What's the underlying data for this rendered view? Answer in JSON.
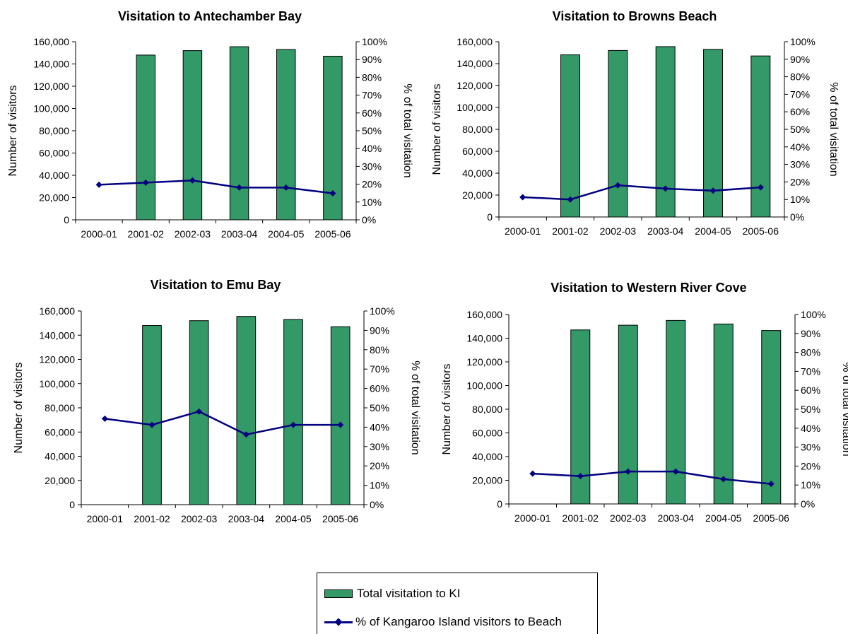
{
  "chart_data": [
    {
      "type": "bar+line",
      "title": "Visitation to Antechamber Bay",
      "ylabel": "Number of visitors",
      "y2label": "% of total visitation",
      "ylim": [
        0,
        160000
      ],
      "y2lim": [
        0,
        100
      ],
      "categories": [
        "2000-01",
        "2001-02",
        "2002-03",
        "2003-04",
        "2004-05",
        "2005-06"
      ],
      "y_ticks": [
        "0",
        "20,000",
        "40,000",
        "60,000",
        "80,000",
        "100,000",
        "120,000",
        "140,000",
        "160,000"
      ],
      "y2_ticks": [
        "0%",
        "10%",
        "20%",
        "30%",
        "40%",
        "50%",
        "60%",
        "70%",
        "80%",
        "90%",
        "100%"
      ],
      "series": [
        {
          "name": "Total visitation to KI",
          "type": "bar",
          "axis": "left",
          "values": [
            null,
            148000,
            152000,
            155500,
            153000,
            147000
          ]
        },
        {
          "name": "% of Kangaroo Island visitors to Beach",
          "type": "line",
          "axis": "right",
          "values": [
            19.7,
            20.9,
            22.1,
            18.1,
            18.1,
            14.9
          ]
        }
      ]
    },
    {
      "type": "bar+line",
      "title": "Visitation to Browns Beach",
      "ylabel": "Number of visitors",
      "y2label": "% of total visitation",
      "ylim": [
        0,
        160000
      ],
      "y2lim": [
        0,
        100
      ],
      "categories": [
        "2000-01",
        "2001-02",
        "2002-03",
        "2003-04",
        "2004-05",
        "2005-06"
      ],
      "y_ticks": [
        "0",
        "20,000",
        "40,000",
        "60,000",
        "80,000",
        "100,000",
        "120,000",
        "140,000",
        "160,000"
      ],
      "y2_ticks": [
        "0%",
        "10%",
        "20%",
        "30%",
        "40%",
        "50%",
        "60%",
        "70%",
        "80%",
        "90%",
        "100%"
      ],
      "series": [
        {
          "name": "Total visitation to KI",
          "type": "bar",
          "axis": "left",
          "values": [
            null,
            148000,
            152000,
            155500,
            153000,
            147000
          ]
        },
        {
          "name": "% of Kangaroo Island visitors to Beach",
          "type": "line",
          "axis": "right",
          "values": [
            11.3,
            10.0,
            18.1,
            16.2,
            15.0,
            16.9
          ]
        }
      ]
    },
    {
      "type": "bar+line",
      "title": "Visitation to Emu Bay",
      "ylabel": "Number of visitors",
      "y2label": "% of total visitation",
      "ylim": [
        0,
        160000
      ],
      "y2lim": [
        0,
        100
      ],
      "categories": [
        "2000-01",
        "2001-02",
        "2002-03",
        "2003-04",
        "2004-05",
        "2005-06"
      ],
      "y_ticks": [
        "0",
        "20,000",
        "40,000",
        "60,000",
        "80,000",
        "100,000",
        "120,000",
        "140,000",
        "160,000"
      ],
      "y2_ticks": [
        "0%",
        "10%",
        "20%",
        "30%",
        "40%",
        "50%",
        "60%",
        "70%",
        "80%",
        "90%",
        "100%"
      ],
      "series": [
        {
          "name": "Total visitation to KI",
          "type": "bar",
          "axis": "left",
          "values": [
            null,
            148000,
            152000,
            155500,
            153000,
            147000
          ]
        },
        {
          "name": "% of Kangaroo Island visitors to Beach",
          "type": "line",
          "axis": "right",
          "values": [
            44.4,
            41.2,
            48.1,
            36.2,
            41.2,
            41.2
          ]
        }
      ]
    },
    {
      "type": "bar+line",
      "title": "Visitation to Western River Cove",
      "ylabel": "Number of visitors",
      "y2label": "% of total visitation",
      "ylim": [
        0,
        160000
      ],
      "y2lim": [
        0,
        100
      ],
      "categories": [
        "2000-01",
        "2001-02",
        "2002-03",
        "2003-04",
        "2004-05",
        "2005-06"
      ],
      "y_ticks": [
        "0",
        "20,000",
        "40,000",
        "60,000",
        "80,000",
        "100,000",
        "120,000",
        "140,000",
        "160,000"
      ],
      "y2_ticks": [
        "0%",
        "10%",
        "20%",
        "30%",
        "40%",
        "50%",
        "60%",
        "70%",
        "80%",
        "90%",
        "100%"
      ],
      "series": [
        {
          "name": "Total visitation to KI",
          "type": "bar",
          "axis": "left",
          "values": [
            null,
            147000,
            151000,
            155000,
            152000,
            146500
          ]
        },
        {
          "name": "% of Kangaroo Island visitors to Beach",
          "type": "line",
          "axis": "right",
          "values": [
            16.0,
            14.7,
            17.1,
            17.1,
            13.1,
            10.6
          ]
        }
      ]
    }
  ],
  "legend": {
    "bar_label": "Total visitation to KI",
    "line_label": "% of Kangaroo Island visitors to Beach"
  },
  "colors": {
    "bar": "#339966",
    "line": "#000080"
  }
}
